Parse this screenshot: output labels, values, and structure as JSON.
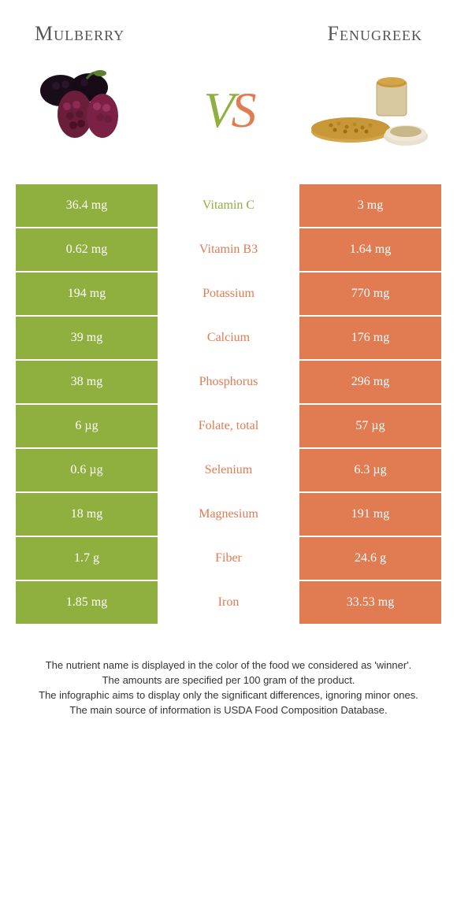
{
  "colors": {
    "left": "#8fb03e",
    "right": "#e07b52",
    "mid_bg": "#ffffff",
    "text_dark": "#555555"
  },
  "header": {
    "left_title": "Mulberry",
    "right_title": "Fenugreek"
  },
  "vs": {
    "v": "V",
    "s": "S"
  },
  "rows": [
    {
      "left": "36.4 mg",
      "mid": "Vitamin C",
      "winner": "left",
      "right": "3 mg"
    },
    {
      "left": "0.62 mg",
      "mid": "Vitamin B3",
      "winner": "right",
      "right": "1.64 mg"
    },
    {
      "left": "194 mg",
      "mid": "Potassium",
      "winner": "right",
      "right": "770 mg"
    },
    {
      "left": "39 mg",
      "mid": "Calcium",
      "winner": "right",
      "right": "176 mg"
    },
    {
      "left": "38 mg",
      "mid": "Phosphorus",
      "winner": "right",
      "right": "296 mg"
    },
    {
      "left": "6 µg",
      "mid": "Folate, total",
      "winner": "right",
      "right": "57 µg"
    },
    {
      "left": "0.6 µg",
      "mid": "Selenium",
      "winner": "right",
      "right": "6.3 µg"
    },
    {
      "left": "18 mg",
      "mid": "Magnesium",
      "winner": "right",
      "right": "191 mg"
    },
    {
      "left": "1.7 g",
      "mid": "Fiber",
      "winner": "right",
      "right": "24.6 g"
    },
    {
      "left": "1.85 mg",
      "mid": "Iron",
      "winner": "right",
      "right": "33.53 mg"
    }
  ],
  "notes": [
    "The nutrient name is displayed in the color of the food we considered as 'winner'.",
    "The amounts are specified per 100 gram of the product.",
    "The infographic aims to display only the significant differences, ignoring minor ones.",
    "The main source of information is USDA Food Composition Database."
  ]
}
